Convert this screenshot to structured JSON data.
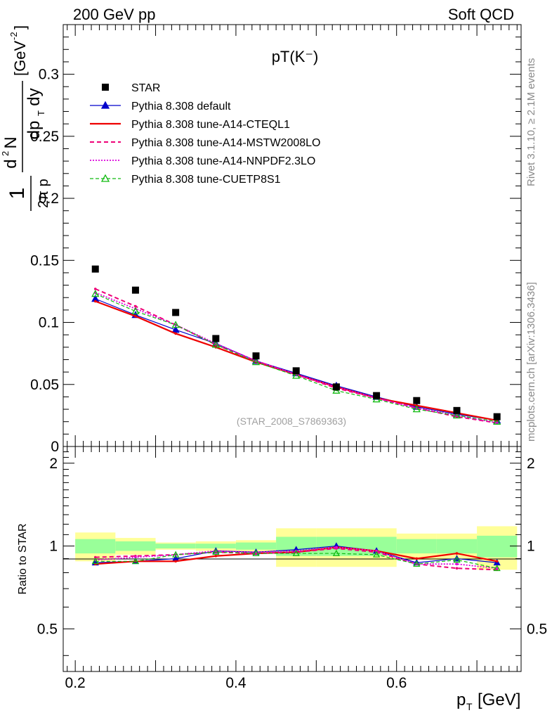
{
  "header": {
    "left": "200 GeV pp",
    "right": "Soft QCD"
  },
  "side_labels": {
    "rivet": "Rivet 3.1.10, ≥ 2.1M events",
    "mcplots": "mcplots.cern.ch [arXiv:1306.3436]"
  },
  "colors": {
    "star": "#000000",
    "default": "#0000cc",
    "cteql1": "#ee0000",
    "mstw": "#ee0077",
    "nnpdf": "#dd00dd",
    "cuetp8s1": "#11bb11",
    "band_inner": "#99ff99",
    "band_outer": "#ffff99"
  },
  "chart_data": [
    {
      "type": "line",
      "title": "pT(K⁻)",
      "xlabel": "p_T [GeV]",
      "ylabel": "1/(2π p_T) d²N/(dp_T dy) [GeV⁻²]",
      "watermark": "(STAR_2008_S7869363)",
      "xlim": [
        0.185,
        0.755
      ],
      "ylim": [
        0,
        0.34
      ],
      "x_ticks": [
        "0.2",
        "0.4",
        "0.6"
      ],
      "y_ticks": [
        "0",
        "0.05",
        "0.1",
        "0.15",
        "0.2",
        "0.25",
        "0.3"
      ],
      "x": [
        0.225,
        0.275,
        0.325,
        0.375,
        0.425,
        0.475,
        0.525,
        0.575,
        0.625,
        0.675,
        0.725
      ],
      "series": [
        {
          "name": "STAR",
          "key": "star",
          "style": "data",
          "values": [
            0.143,
            0.126,
            0.108,
            0.087,
            0.073,
            0.061,
            0.048,
            0.041,
            0.037,
            0.029,
            0.024
          ]
        },
        {
          "name": "Pythia 8.308 default",
          "key": "default",
          "style": "solid-thin",
          "marker": "triangle-filled",
          "values": [
            0.119,
            0.106,
            0.094,
            0.083,
            0.069,
            0.059,
            0.049,
            0.04,
            0.032,
            0.026,
            0.021
          ]
        },
        {
          "name": "Pythia 8.308 tune-A14-CTEQL1",
          "key": "cteql1",
          "style": "solid-thick",
          "values": [
            0.117,
            0.105,
            0.091,
            0.08,
            0.068,
            0.058,
            0.048,
            0.039,
            0.033,
            0.027,
            0.021
          ]
        },
        {
          "name": "Pythia 8.308 tune-A14-MSTW2008LO",
          "key": "mstw",
          "style": "dashed",
          "values": [
            0.127,
            0.113,
            0.098,
            0.082,
            0.069,
            0.058,
            0.047,
            0.039,
            0.031,
            0.024,
            0.019
          ]
        },
        {
          "name": "Pythia 8.308 tune-A14-NNPDF2.3LO",
          "key": "nnpdf",
          "style": "dotted",
          "values": [
            0.124,
            0.111,
            0.098,
            0.083,
            0.069,
            0.058,
            0.048,
            0.039,
            0.031,
            0.025,
            0.019
          ]
        },
        {
          "name": "Pythia 8.308 tune-CUETP8S1",
          "key": "cuetp8s1",
          "style": "dashed-thin",
          "marker": "triangle-open",
          "values": [
            0.123,
            0.109,
            0.098,
            0.082,
            0.068,
            0.057,
            0.045,
            0.038,
            0.03,
            0.025,
            0.02
          ]
        }
      ]
    },
    {
      "type": "line",
      "ylabel": "Ratio to STAR",
      "xlim": [
        0.185,
        0.755
      ],
      "ylim": [
        0.35,
        2.3
      ],
      "x_ticks": [
        "0.2",
        "0.4",
        "0.6"
      ],
      "y_ticks": [
        "0.5",
        "1",
        "2"
      ],
      "x": [
        0.225,
        0.275,
        0.325,
        0.375,
        0.425,
        0.475,
        0.525,
        0.575,
        0.625,
        0.675,
        0.725
      ],
      "bins": [
        [
          0.2,
          0.25
        ],
        [
          0.25,
          0.3
        ],
        [
          0.3,
          0.35
        ],
        [
          0.35,
          0.4
        ],
        [
          0.4,
          0.45
        ],
        [
          0.45,
          0.5
        ],
        [
          0.5,
          0.55
        ],
        [
          0.55,
          0.6
        ],
        [
          0.6,
          0.65
        ],
        [
          0.65,
          0.7
        ],
        [
          0.7,
          0.75
        ]
      ],
      "band_inner": [
        [
          0.94,
          1.06
        ],
        [
          0.96,
          1.04
        ],
        [
          0.98,
          1.02
        ],
        [
          0.98,
          1.02
        ],
        [
          0.97,
          1.03
        ],
        [
          0.92,
          1.08
        ],
        [
          0.92,
          1.08
        ],
        [
          0.92,
          1.08
        ],
        [
          0.94,
          1.06
        ],
        [
          0.94,
          1.06
        ],
        [
          0.91,
          1.09
        ]
      ],
      "band_outer": [
        [
          0.88,
          1.12
        ],
        [
          0.93,
          1.07
        ],
        [
          0.97,
          1.03
        ],
        [
          0.96,
          1.04
        ],
        [
          0.95,
          1.05
        ],
        [
          0.84,
          1.16
        ],
        [
          0.84,
          1.16
        ],
        [
          0.84,
          1.16
        ],
        [
          0.89,
          1.11
        ],
        [
          0.89,
          1.11
        ],
        [
          0.82,
          1.18
        ]
      ],
      "series": [
        {
          "key": "default",
          "style": "solid-thin",
          "marker": "triangle-filled",
          "values": [
            0.87,
            0.88,
            0.9,
            0.96,
            0.95,
            0.97,
            1.0,
            0.96,
            0.87,
            0.9,
            0.87
          ]
        },
        {
          "key": "cteql1",
          "style": "solid-thick",
          "values": [
            0.86,
            0.88,
            0.88,
            0.92,
            0.94,
            0.95,
            0.99,
            0.96,
            0.9,
            0.94,
            0.88
          ]
        },
        {
          "key": "mstw",
          "style": "dashed",
          "values": [
            0.91,
            0.92,
            0.93,
            0.95,
            0.94,
            0.95,
            0.98,
            0.95,
            0.86,
            0.83,
            0.82
          ]
        },
        {
          "key": "nnpdf",
          "style": "dotted",
          "values": [
            0.89,
            0.91,
            0.93,
            0.96,
            0.95,
            0.96,
            0.99,
            0.96,
            0.86,
            0.86,
            0.83
          ]
        },
        {
          "key": "cuetp8s1",
          "style": "dashed-thin",
          "marker": "triangle-open",
          "values": [
            0.88,
            0.88,
            0.93,
            0.95,
            0.94,
            0.94,
            0.94,
            0.93,
            0.86,
            0.89,
            0.83
          ]
        }
      ]
    }
  ]
}
